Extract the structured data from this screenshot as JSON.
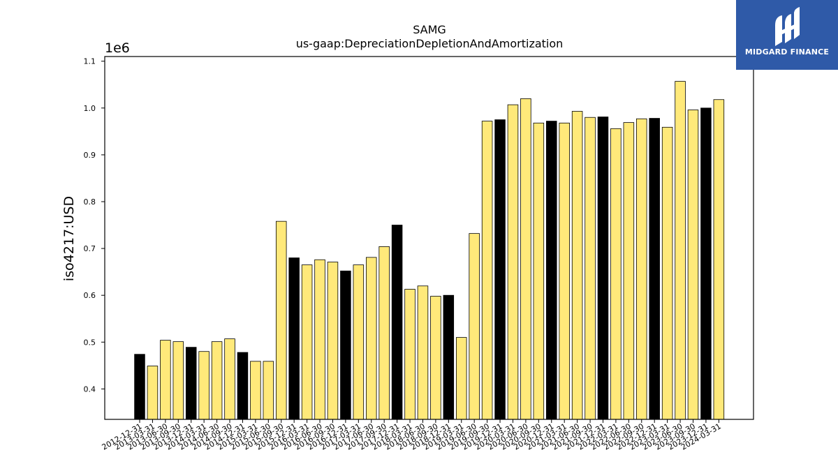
{
  "chart_data": {
    "type": "bar",
    "title": "SAMG",
    "subtitle": "us-gaap:DepreciationDepletionAndAmortization",
    "ylabel": "iso4217:USD",
    "xlabel": "",
    "offset_label": "1e6",
    "ylim": [
      0.335,
      1.11
    ],
    "yticks": [
      0.4,
      0.5,
      0.6,
      0.7,
      0.8,
      0.9,
      1.0,
      1.1
    ],
    "grid": false,
    "colors": {
      "yellow": "#ffe97a",
      "black": "#000000"
    },
    "categories": [
      "2012-12-31",
      "2013-03-31",
      "2013-06-30",
      "2013-09-30",
      "2013-12-31",
      "2014-03-31",
      "2014-06-30",
      "2014-09-30",
      "2014-12-31",
      "2015-03-31",
      "2015-06-30",
      "2015-09-30",
      "2015-12-31",
      "2016-03-31",
      "2016-06-30",
      "2016-09-30",
      "2016-12-31",
      "2017-03-31",
      "2017-06-30",
      "2017-09-30",
      "2017-12-31",
      "2018-03-31",
      "2018-06-30",
      "2018-09-30",
      "2018-12-31",
      "2019-03-31",
      "2019-06-30",
      "2019-09-30",
      "2019-12-31",
      "2020-03-31",
      "2020-06-30",
      "2020-09-30",
      "2020-12-31",
      "2021-03-31",
      "2021-06-30",
      "2021-09-30",
      "2021-12-31",
      "2022-03-31",
      "2022-06-30",
      "2022-09-30",
      "2022-12-31",
      "2023-03-31",
      "2023-06-30",
      "2023-09-30",
      "2023-12-31",
      "2024-03-31"
    ],
    "values": [
      0.474,
      0.449,
      0.504,
      0.501,
      0.489,
      0.48,
      0.501,
      0.507,
      0.478,
      0.459,
      0.459,
      0.758,
      0.68,
      0.665,
      0.676,
      0.671,
      0.652,
      0.665,
      0.681,
      0.704,
      0.75,
      0.613,
      0.62,
      0.598,
      0.6,
      0.51,
      0.732,
      0.972,
      0.975,
      1.007,
      1.02,
      0.968,
      0.972,
      0.968,
      0.993,
      0.98,
      0.981,
      0.956,
      0.969,
      0.977,
      0.978,
      0.959,
      1.057,
      0.996,
      1.0,
      1.018
    ],
    "bar_colors": [
      "black",
      "yellow",
      "yellow",
      "yellow",
      "black",
      "yellow",
      "yellow",
      "yellow",
      "black",
      "yellow",
      "yellow",
      "yellow",
      "black",
      "yellow",
      "yellow",
      "yellow",
      "black",
      "yellow",
      "yellow",
      "yellow",
      "black",
      "yellow",
      "yellow",
      "yellow",
      "black",
      "yellow",
      "yellow",
      "yellow",
      "black",
      "yellow",
      "yellow",
      "yellow",
      "black",
      "yellow",
      "yellow",
      "yellow",
      "black",
      "yellow",
      "yellow",
      "yellow",
      "black",
      "yellow",
      "yellow",
      "yellow",
      "black",
      "yellow"
    ]
  },
  "logo": {
    "text": "MIDGARD FINANCE",
    "icon": "midgard-logo-icon",
    "background": "#2f5aa8"
  }
}
